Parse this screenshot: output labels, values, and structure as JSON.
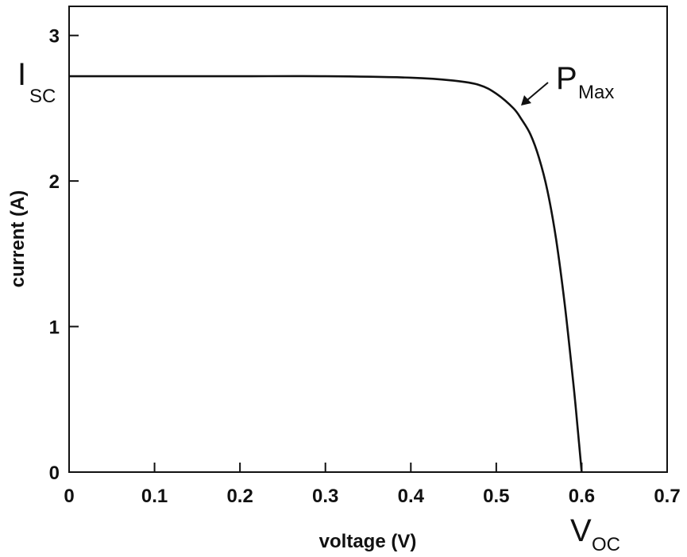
{
  "chart_data": {
    "type": "line",
    "title": "",
    "xlabel": "voltage (V)",
    "ylabel": "current (A)",
    "xlim": [
      0,
      0.7
    ],
    "ylim": [
      0,
      3.2
    ],
    "xticks": [
      "0",
      "0.1",
      "0.2",
      "0.3",
      "0.4",
      "0.5",
      "0.6",
      "0.7"
    ],
    "yticks": [
      "0",
      "1",
      "2",
      "3"
    ],
    "grid": false,
    "legend": "none",
    "line_color": "#111111",
    "series": [
      {
        "x": [
          0,
          0.1,
          0.2,
          0.3,
          0.4,
          0.45,
          0.48,
          0.5,
          0.52,
          0.53,
          0.54,
          0.55,
          0.56,
          0.57,
          0.58,
          0.59,
          0.595,
          0.6
        ],
        "y": [
          2.72,
          2.72,
          2.72,
          2.72,
          2.71,
          2.69,
          2.66,
          2.6,
          2.5,
          2.42,
          2.32,
          2.16,
          1.93,
          1.6,
          1.16,
          0.62,
          0.32,
          0
        ]
      }
    ],
    "annotations": {
      "isc": {
        "main": "I",
        "sub": "SC",
        "y": 2.72
      },
      "pmax": {
        "main": "P",
        "sub": "Max",
        "x": 0.53,
        "y": 2.42
      },
      "voc": {
        "main": "V",
        "sub": "OC",
        "x": 0.6
      }
    }
  }
}
